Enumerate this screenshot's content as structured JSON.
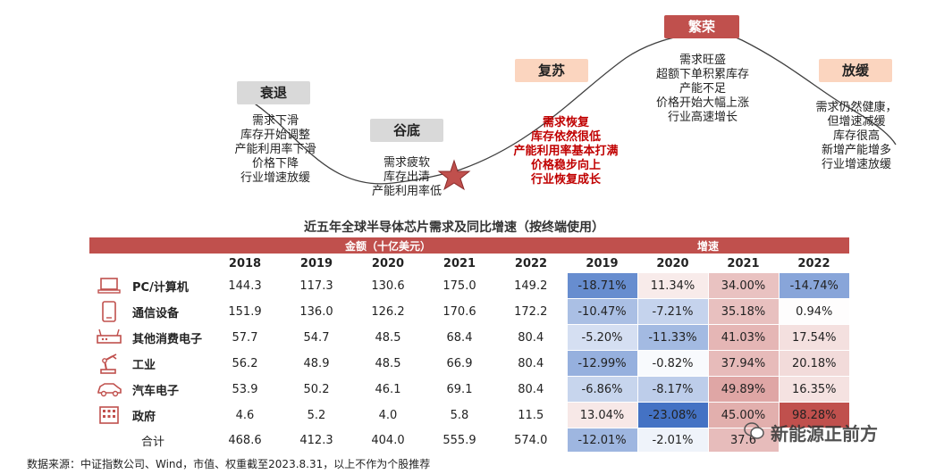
{
  "cycle": {
    "phases": [
      {
        "label": "衰退",
        "style": "grey"
      },
      {
        "label": "谷底",
        "style": "grey"
      },
      {
        "label": "复苏",
        "style": "peach"
      },
      {
        "label": "繁荣",
        "style": "red"
      },
      {
        "label": "放缓",
        "style": "peach"
      }
    ],
    "descriptions": {
      "recession": [
        "需求下滑",
        "库存开始调整",
        "产能利用率下滑",
        "价格下降",
        "行业增速放缓"
      ],
      "trough": [
        "需求疲软",
        "库存出清",
        "产能利用率低"
      ],
      "recovery": [
        "需求恢复",
        "库存依然很低",
        "产能利用率基本打满",
        "价格稳步向上",
        "行业恢复成长"
      ],
      "boom": [
        "需求旺盛",
        "超额下单积累库存",
        "产能不足",
        "价格开始大幅上涨",
        "行业高速增长"
      ],
      "slowdown": [
        "需求仍然健康，",
        "但增速减缓",
        "库存很高",
        "新增产能增多",
        "行业增速放缓"
      ]
    },
    "colors": {
      "curve": "#404040",
      "star": "#c0504d",
      "accent_red": "#c00000"
    }
  },
  "chart_data": {
    "type": "table",
    "title": "近五年全球半导体芯片需求及同比增速（按终端使用）",
    "group_headers": {
      "amount": "金额（十亿美元）",
      "growth": "增速"
    },
    "amount_years": [
      "2018",
      "2019",
      "2020",
      "2021",
      "2022"
    ],
    "growth_years": [
      "2019",
      "2020",
      "2021",
      "2022"
    ],
    "rows": [
      {
        "category": "PC/计算机",
        "icon": "laptop-icon",
        "amount": [
          "144.3",
          "117.3",
          "130.6",
          "175.0",
          "149.2"
        ],
        "growth": [
          "-18.71%",
          "11.34%",
          "34.00%",
          "-14.74%"
        ],
        "growth_values": [
          -18.71,
          11.34,
          34.0,
          -14.74
        ]
      },
      {
        "category": "通信设备",
        "icon": "phone-icon",
        "amount": [
          "151.9",
          "136.0",
          "126.2",
          "170.6",
          "172.2"
        ],
        "growth": [
          "-10.47%",
          "-7.21%",
          "35.18%",
          "0.94%"
        ],
        "growth_values": [
          -10.47,
          -7.21,
          35.18,
          0.94
        ]
      },
      {
        "category": "其他消费电子",
        "icon": "router-icon",
        "amount": [
          "57.7",
          "54.7",
          "48.5",
          "68.4",
          "80.4"
        ],
        "growth": [
          "-5.20%",
          "-11.33%",
          "41.03%",
          "17.54%"
        ],
        "growth_values": [
          -5.2,
          -11.33,
          41.03,
          17.54
        ]
      },
      {
        "category": "工业",
        "icon": "robot-arm-icon",
        "amount": [
          "56.2",
          "48.9",
          "48.5",
          "66.9",
          "80.4"
        ],
        "growth": [
          "-12.99%",
          "-0.82%",
          "37.94%",
          "20.18%"
        ],
        "growth_values": [
          -12.99,
          -0.82,
          37.94,
          20.18
        ]
      },
      {
        "category": "汽车电子",
        "icon": "car-icon",
        "amount": [
          "53.9",
          "50.2",
          "46.1",
          "69.1",
          "80.4"
        ],
        "growth": [
          "-6.86%",
          "-8.17%",
          "49.89%",
          "16.35%"
        ],
        "growth_values": [
          -6.86,
          -8.17,
          49.89,
          16.35
        ]
      },
      {
        "category": "政府",
        "icon": "building-icon",
        "amount": [
          "4.6",
          "5.2",
          "4.0",
          "5.8",
          "11.5"
        ],
        "growth": [
          "13.04%",
          "-23.08%",
          "45.00%",
          "98.28%"
        ],
        "growth_values": [
          13.04,
          -23.08,
          45.0,
          98.28
        ]
      },
      {
        "category": "合计",
        "icon": "",
        "amount": [
          "468.6",
          "412.3",
          "404.0",
          "555.9",
          "574.0"
        ],
        "growth": [
          "-12.01%",
          "-2.01%",
          "37.6",
          ""
        ],
        "growth_values": [
          -12.01,
          -2.01,
          37.6,
          null
        ]
      }
    ],
    "colors": {
      "header": "#c0504d",
      "neg_max": "#4472c4",
      "pos_max": "#c0504d",
      "neutral": "#ffffff"
    }
  },
  "source": "数据来源：中证指数公司、Wind，市值、权重截至2023.8.31，以上不作为个股推荐",
  "watermark": "新能源正前方"
}
